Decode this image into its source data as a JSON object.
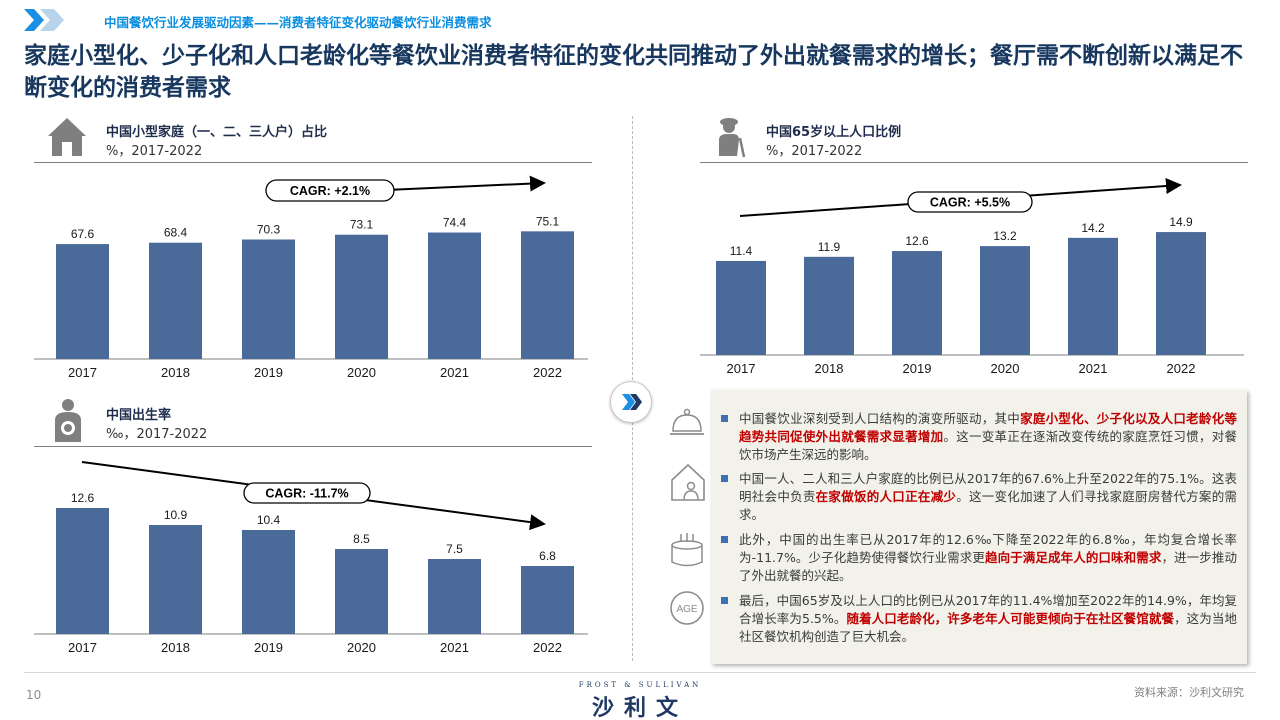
{
  "header": {
    "breadcrumb": "中国餐饮行业发展驱动因素——消费者特征变化驱动餐饮行业消费需求"
  },
  "title": "家庭小型化、少子化和人口老龄化等餐饮业消费者特征的变化共同推动了外出就餐需求的增长；餐厅需不断创新以满足不断变化的消费者需求",
  "colors": {
    "bar": "#4a6a99",
    "accent": "#0a8ee0",
    "title": "#17375e",
    "highlight": "#c00000"
  },
  "icons": [
    "house-icon",
    "elderly-person-icon",
    "mother-baby-icon",
    "chevron-right-icon",
    "cloche-icon",
    "home-person-icon",
    "cake-icon",
    "age-icon"
  ],
  "chart_data": [
    {
      "type": "bar",
      "title": "中国小型家庭（一、二、三人户）占比",
      "subtitle": "%，2017-2022",
      "categories": [
        "2017",
        "2018",
        "2019",
        "2020",
        "2021",
        "2022"
      ],
      "values": [
        67.6,
        68.4,
        70.3,
        73.1,
        74.4,
        75.1
      ],
      "annotation": "CAGR: +2.1%",
      "trend": "up"
    },
    {
      "type": "bar",
      "title": "中国65岁以上人口比例",
      "subtitle": "%，2017-2022",
      "categories": [
        "2017",
        "2018",
        "2019",
        "2020",
        "2021",
        "2022"
      ],
      "values": [
        11.4,
        11.9,
        12.6,
        13.2,
        14.2,
        14.9
      ],
      "annotation": "CAGR: +5.5%",
      "trend": "up"
    },
    {
      "type": "bar",
      "title": "中国出生率",
      "subtitle": "‰，2017-2022",
      "categories": [
        "2017",
        "2018",
        "2019",
        "2020",
        "2021",
        "2022"
      ],
      "values": [
        12.6,
        10.9,
        10.4,
        8.5,
        7.5,
        6.8
      ],
      "annotation": "CAGR: -11.7%",
      "trend": "down"
    }
  ],
  "bullets": [
    {
      "pre": "中国餐饮业深刻受到人口结构的演变所驱动，其中",
      "hl": "家庭小型化、少子化以及人口老龄化等趋势共同促使外出就餐需求显著增加",
      "post": "。这一变革正在逐渐改变传统的家庭烹饪习惯，对餐饮市场产生深远的影响。"
    },
    {
      "pre": "中国一人、二人和三人户家庭的比例已从2017年的67.6%上升至2022年的75.1%。这表明社会中负责",
      "hl": "在家做饭的人口正在减少",
      "post": "。这一变化加速了人们寻找家庭厨房替代方案的需求。"
    },
    {
      "pre": "此外，中国的出生率已从2017年的12.6‰下降至2022年的6.8‰，年均复合增长率为-11.7%。少子化趋势使得餐饮行业需求更",
      "hl": "趋向于满足成年人的口味和需求",
      "post": "，进一步推动了外出就餐的兴起。"
    },
    {
      "pre": "最后，中国65岁及以上人口的比例已从2017年的11.4%增加至2022年的14.9%，年均复合增长率为5.5%。",
      "hl": "随着人口老龄化，许多老年人可能更倾向于在社区餐馆就餐",
      "post": "，这为当地社区餐饮机构创造了巨大机会。"
    }
  ],
  "age_icon_text": "AGE",
  "footer": {
    "page": "10",
    "logo_small": "FROST & SULLIVAN",
    "logo_big": "沙利文",
    "source": "资料来源：沙利文研究"
  }
}
